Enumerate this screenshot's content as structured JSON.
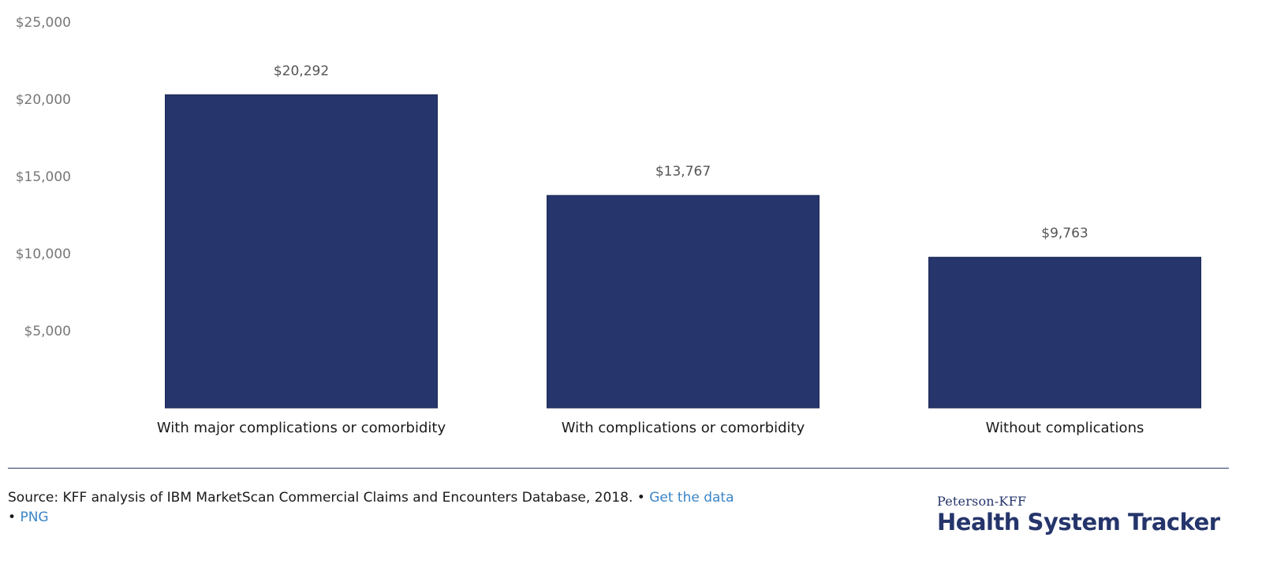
{
  "chart_data": {
    "type": "bar",
    "categories": [
      "With major complications or comorbidity",
      "With complications or comorbidity",
      "Without complications"
    ],
    "values": [
      20292,
      13767,
      9763
    ],
    "value_labels": [
      "$20,292",
      "$13,767",
      "$9,763"
    ],
    "y_ticks": [
      5000,
      10000,
      15000,
      20000,
      25000
    ],
    "y_tick_labels": [
      "$5,000",
      "$10,000",
      "$15,000",
      "$20,000",
      "$25,000"
    ],
    "ylim": [
      0,
      25000
    ],
    "grid": false,
    "legend": "none",
    "bar_color": "#26356b"
  },
  "footer": {
    "source_text": "Source: KFF analysis of IBM MarketScan Commercial Claims and Encounters Database, 2018. • ",
    "get_data_label": "Get the data",
    "separator": "• ",
    "png_label": "PNG",
    "link_color": "#3a85c6"
  },
  "brand": {
    "top_line": "Peterson-KFF",
    "main_line": "Health System Tracker",
    "color": "#25356b"
  }
}
